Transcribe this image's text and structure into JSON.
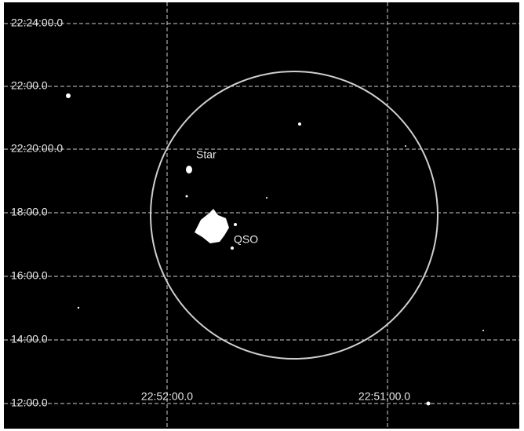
{
  "grid": {
    "dec_labels": [
      "22:24:00.0",
      "22:00.0",
      "22:20:00.0",
      "18:00.0",
      "16:00.0",
      "14:00.0",
      "12:00.0"
    ],
    "ra_labels": [
      "22:52:00.0",
      "22:51:00.0"
    ]
  },
  "annotations": {
    "star": "Star",
    "qso": "QSO"
  }
}
